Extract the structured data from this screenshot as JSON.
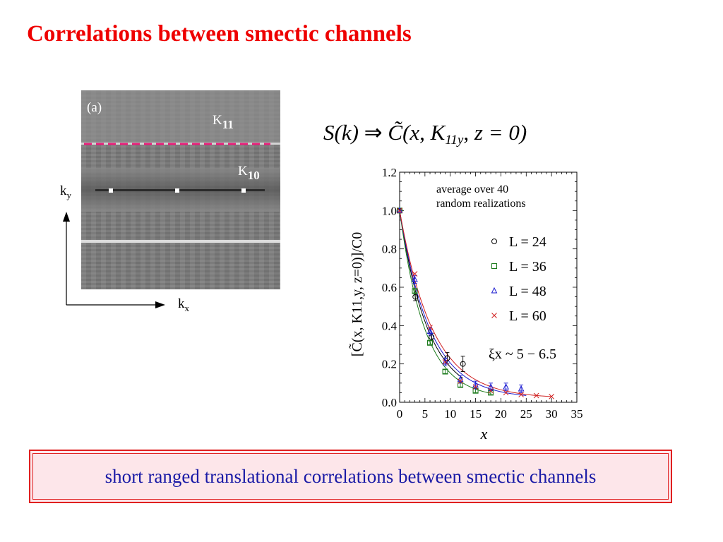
{
  "slide": {
    "title": "Correlations between smectic channels",
    "summary": "short ranged translational correlations between smectic channels"
  },
  "diffraction_panel": {
    "panel_label": "(a)",
    "k11_label": "K",
    "k11_sub": "11",
    "k10_label": "K",
    "k10_sub": "10",
    "ky_label": "k",
    "ky_sub": "y",
    "kx_label": "k",
    "kx_sub": "x",
    "dashed_line_color": "#e8207a"
  },
  "formula": {
    "lhs": "S(k)",
    "arrow": "⇒",
    "rhs_prefix": "C̃(x, K",
    "rhs_sub": "11y",
    "rhs_suffix": ", z = 0)"
  },
  "chart_data": {
    "type": "scatter",
    "xlabel": "x",
    "ylabel": "[C̃(x, K11,y, z=0)]/C0",
    "xlim": [
      0,
      35
    ],
    "ylim": [
      0,
      1.2
    ],
    "xticks": [
      0,
      5,
      10,
      15,
      20,
      25,
      30,
      35
    ],
    "yticks": [
      0.0,
      0.2,
      0.4,
      0.6,
      0.8,
      1.0,
      1.2
    ],
    "ytick_labels": [
      "0.0",
      "0.2",
      "0.4",
      "0.6",
      "0.8",
      "1.0",
      "1.2"
    ],
    "annotation_lines": [
      "average over 40",
      "random realizations"
    ],
    "xi_annotation": "ξx ~ 5 − 6.5",
    "legend_position": "right",
    "series": [
      {
        "name": "L = 24",
        "marker": "circle",
        "color": "#000000",
        "x": [
          0,
          3.1,
          6.3,
          9.4,
          12.5
        ],
        "y": [
          1.0,
          0.55,
          0.34,
          0.23,
          0.2
        ],
        "err": [
          0,
          0.02,
          0.02,
          0.03,
          0.04
        ]
      },
      {
        "name": "L = 36",
        "marker": "square",
        "color": "#1a7a1a",
        "x": [
          0,
          3,
          6,
          9,
          12,
          15,
          18
        ],
        "y": [
          1.0,
          0.58,
          0.31,
          0.16,
          0.09,
          0.06,
          0.05
        ],
        "err": [
          0,
          0.01,
          0.01,
          0.01,
          0.01,
          0.01,
          0.01
        ]
      },
      {
        "name": "L = 48",
        "marker": "triangle",
        "color": "#1a1ad0",
        "x": [
          0,
          3,
          6,
          9,
          12,
          15,
          18,
          21,
          24
        ],
        "y": [
          1.0,
          0.64,
          0.37,
          0.21,
          0.12,
          0.09,
          0.08,
          0.08,
          0.07
        ],
        "err": [
          0,
          0.02,
          0.02,
          0.02,
          0.02,
          0.02,
          0.02,
          0.02,
          0.02
        ]
      },
      {
        "name": "L = 60",
        "marker": "cross",
        "color": "#d02020",
        "x": [
          0,
          3,
          6,
          9,
          12,
          15,
          18,
          21,
          24,
          27,
          30
        ],
        "y": [
          1.0,
          0.67,
          0.39,
          0.21,
          0.11,
          0.08,
          0.06,
          0.05,
          0.04,
          0.035,
          0.03
        ],
        "err": [
          0,
          0,
          0,
          0,
          0,
          0,
          0,
          0,
          0,
          0,
          0
        ]
      }
    ],
    "fit_curves": [
      {
        "color": "#000000",
        "x0": 0,
        "x1": 12.5,
        "xi": 5.6
      },
      {
        "color": "#1a7a1a",
        "x0": 0,
        "x1": 18,
        "xi": 5.0
      },
      {
        "color": "#1a1ad0",
        "x0": 0,
        "x1": 25,
        "xi": 6.0
      },
      {
        "color": "#d02020",
        "x0": 0,
        "x1": 30,
        "xi": 6.5
      }
    ]
  }
}
